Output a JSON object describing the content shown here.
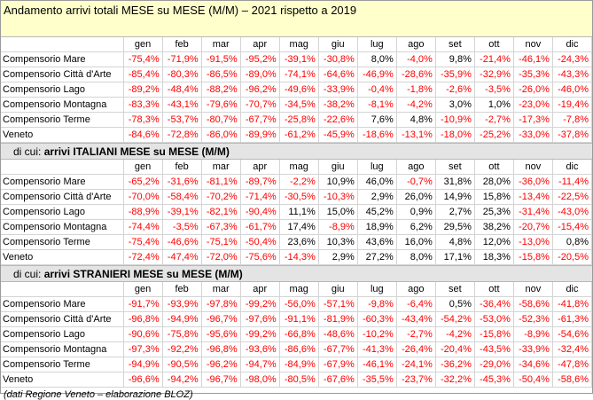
{
  "title": "Andamento arrivi totali MESE su MESE (M/M) – 2021 rispetto a 2019",
  "months": [
    "gen",
    "feb",
    "mar",
    "apr",
    "mag",
    "giu",
    "lug",
    "ago",
    "set",
    "ott",
    "nov",
    "dic"
  ],
  "sections": [
    {
      "prefix": "",
      "heading": "",
      "rows": [
        {
          "label": "Compensorio Mare",
          "values": [
            "-75,4%",
            "-71,9%",
            "-91,5%",
            "-95,2%",
            "-39,1%",
            "-30,8%",
            "8,0%",
            "-4,0%",
            "9,8%",
            "-21,4%",
            "-46,1%",
            "-24,3%"
          ]
        },
        {
          "label": "Compensorio Città d'Arte",
          "values": [
            "-85,4%",
            "-80,3%",
            "-86,5%",
            "-89,0%",
            "-74,1%",
            "-64,6%",
            "-46,9%",
            "-28,6%",
            "-35,9%",
            "-32,9%",
            "-35,3%",
            "-43,3%"
          ]
        },
        {
          "label": "Compensorio Lago",
          "values": [
            "-89,2%",
            "-48,4%",
            "-88,2%",
            "-96,2%",
            "-49,6%",
            "-33,9%",
            "-0,4%",
            "-1,8%",
            "-2,6%",
            "-3,5%",
            "-26,0%",
            "-46,0%"
          ]
        },
        {
          "label": "Compensorio Montagna",
          "values": [
            "-83,3%",
            "-43,1%",
            "-79,6%",
            "-70,7%",
            "-34,5%",
            "-38,2%",
            "-8,1%",
            "-4,2%",
            "3,0%",
            "1,0%",
            "-23,0%",
            "-19,4%"
          ]
        },
        {
          "label": "Compensorio Terme",
          "values": [
            "-78,3%",
            "-53,7%",
            "-80,7%",
            "-67,7%",
            "-25,8%",
            "-22,6%",
            "7,6%",
            "4,8%",
            "-10,9%",
            "-2,7%",
            "-17,3%",
            "-7,8%"
          ]
        },
        {
          "label": "Veneto",
          "values": [
            "-84,6%",
            "-72,8%",
            "-86,0%",
            "-89,9%",
            "-61,2%",
            "-45,9%",
            "-18,6%",
            "-13,1%",
            "-18,0%",
            "-25,2%",
            "-33,0%",
            "-37,8%"
          ]
        }
      ]
    },
    {
      "prefix": "di cui: ",
      "heading": "arrivi ITALIANI MESE su MESE (M/M)",
      "rows": [
        {
          "label": "Compensorio Mare",
          "values": [
            "-65,2%",
            "-31,6%",
            "-81,1%",
            "-89,7%",
            "-2,2%",
            "10,9%",
            "46,0%",
            "-0,7%",
            "31,8%",
            "28,0%",
            "-36,0%",
            "-11,4%"
          ]
        },
        {
          "label": "Compensorio Città d'Arte",
          "values": [
            "-70,0%",
            "-58,4%",
            "-70,2%",
            "-71,4%",
            "-30,5%",
            "-10,3%",
            "2,9%",
            "26,0%",
            "14,9%",
            "15,8%",
            "-13,4%",
            "-22,5%"
          ]
        },
        {
          "label": "Compensorio Lago",
          "values": [
            "-88,9%",
            "-39,1%",
            "-82,1%",
            "-90,4%",
            "11,1%",
            "15,0%",
            "45,2%",
            "0,9%",
            "2,7%",
            "25,3%",
            "-31,4%",
            "-43,0%"
          ]
        },
        {
          "label": "Compensorio Montagna",
          "values": [
            "-74,4%",
            "-3,5%",
            "-67,3%",
            "-61,7%",
            "17,4%",
            "-8,9%",
            "18,9%",
            "6,2%",
            "29,5%",
            "38,2%",
            "-20,7%",
            "-15,4%"
          ]
        },
        {
          "label": "Compensorio Terme",
          "values": [
            "-75,4%",
            "-46,6%",
            "-75,1%",
            "-50,4%",
            "23,6%",
            "10,3%",
            "43,6%",
            "16,0%",
            "4,8%",
            "12,0%",
            "-13,0%",
            "0,8%"
          ]
        },
        {
          "label": "Veneto",
          "values": [
            "-72,4%",
            "-47,4%",
            "-72,0%",
            "-75,6%",
            "-14,3%",
            "2,9%",
            "27,2%",
            "8,0%",
            "17,1%",
            "18,3%",
            "-15,8%",
            "-20,5%"
          ]
        }
      ]
    },
    {
      "prefix": "di cui: ",
      "heading": "arrivi STRANIERI MESE su MESE (M/M)",
      "rows": [
        {
          "label": "Compensorio Mare",
          "values": [
            "-91,7%",
            "-93,9%",
            "-97,8%",
            "-99,2%",
            "-56,0%",
            "-57,1%",
            "-9,8%",
            "-6,4%",
            "0,5%",
            "-36,4%",
            "-58,6%",
            "-41,8%"
          ]
        },
        {
          "label": "Compensorio Città d'Arte",
          "values": [
            "-96,8%",
            "-94,9%",
            "-96,7%",
            "-97,6%",
            "-91,1%",
            "-81,9%",
            "-60,3%",
            "-43,4%",
            "-54,2%",
            "-53,0%",
            "-52,3%",
            "-61,3%"
          ]
        },
        {
          "label": "Compensorio Lago",
          "values": [
            "-90,6%",
            "-75,8%",
            "-95,6%",
            "-99,2%",
            "-66,8%",
            "-48,6%",
            "-10,2%",
            "-2,7%",
            "-4,2%",
            "-15,8%",
            "-8,9%",
            "-54,6%"
          ]
        },
        {
          "label": "Compensorio Montagna",
          "values": [
            "-97,3%",
            "-92,2%",
            "-96,8%",
            "-93,6%",
            "-86,6%",
            "-67,7%",
            "-41,3%",
            "-26,4%",
            "-20,4%",
            "-43,5%",
            "-33,9%",
            "-32,4%"
          ]
        },
        {
          "label": "Compensorio Terme",
          "values": [
            "-94,9%",
            "-90,5%",
            "-96,2%",
            "-94,7%",
            "-84,9%",
            "-67,9%",
            "-46,1%",
            "-24,1%",
            "-36,2%",
            "-29,0%",
            "-34,6%",
            "-47,8%"
          ]
        },
        {
          "label": "Veneto",
          "values": [
            "-96,6%",
            "-94,2%",
            "-96,7%",
            "-98,0%",
            "-80,5%",
            "-67,6%",
            "-35,5%",
            "-23,7%",
            "-32,2%",
            "-45,3%",
            "-50,4%",
            "-58,6%"
          ]
        }
      ]
    }
  ],
  "note": "(dati Regione Veneto – elaborazione BLOZ)",
  "colors": {
    "negative": "#ff0000",
    "positive": "#000000",
    "title_bg": "#ffffcc",
    "section_bg": "#e4e4e4"
  }
}
